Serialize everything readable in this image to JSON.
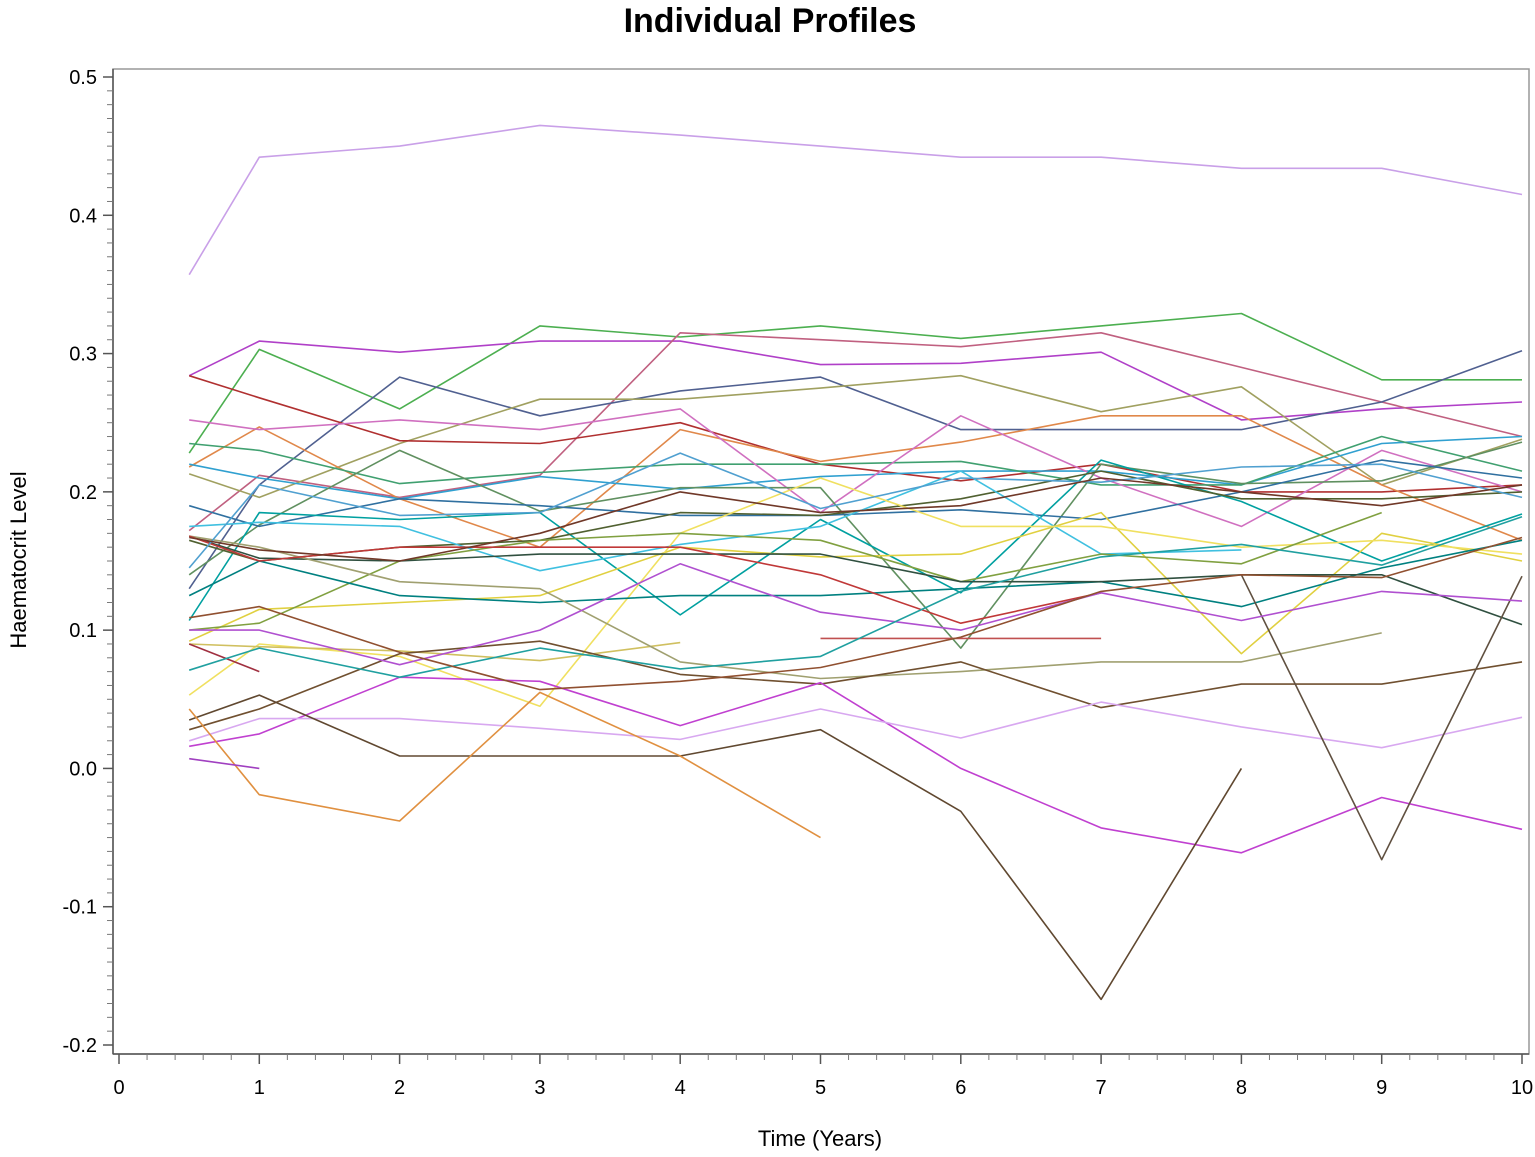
{
  "chart_data": {
    "type": "line",
    "title": "Individual Profiles",
    "xlabel": "Time (Years)",
    "ylabel": "Haematocrit Level",
    "xlim": [
      0,
      10
    ],
    "ylim": [
      -0.2,
      0.5
    ],
    "x_ticks": [
      "0",
      "1",
      "2",
      "3",
      "4",
      "5",
      "6",
      "7",
      "8",
      "9",
      "10"
    ],
    "y_ticks": [
      "0.5",
      "0.4",
      "0.3",
      "0.2",
      "0.1",
      "0.0",
      "-0.1",
      "-0.2"
    ],
    "x_tick_values": [
      0,
      1,
      2,
      3,
      4,
      5,
      6,
      7,
      8,
      9,
      10
    ],
    "y_tick_values": [
      0.5,
      0.4,
      0.3,
      0.2,
      0.1,
      0.0,
      -0.1,
      -0.2
    ],
    "grid": false,
    "legend": "none",
    "series": [
      {
        "color": "#c9a0e8",
        "x": [
          0.5,
          1,
          2,
          3,
          4,
          5,
          6,
          7,
          8,
          9,
          10
        ],
        "y": [
          0.357,
          0.442,
          0.45,
          0.465,
          0.458,
          0.45,
          0.442,
          0.442,
          0.434,
          0.434,
          0.415
        ]
      },
      {
        "color": "#4caf50",
        "x": [
          0.5,
          1,
          2,
          3,
          4,
          5,
          6,
          7,
          8,
          9,
          10
        ],
        "y": [
          0.228,
          0.303,
          0.26,
          0.32,
          0.312,
          0.32,
          0.311,
          0.32,
          0.329,
          0.281,
          0.281
        ]
      },
      {
        "color": "#b040c8",
        "x": [
          0.5,
          1,
          2,
          3,
          4,
          5,
          6,
          7,
          8,
          9,
          10
        ],
        "y": [
          0.284,
          0.309,
          0.301,
          0.309,
          0.309,
          0.292,
          0.293,
          0.301,
          0.252,
          0.26,
          0.265
        ]
      },
      {
        "color": "#c06080",
        "x": [
          0.5,
          1,
          2,
          3,
          4,
          5,
          6,
          7,
          8,
          9,
          10
        ],
        "y": [
          0.172,
          0.212,
          0.196,
          0.212,
          0.315,
          0.31,
          0.305,
          0.315,
          0.29,
          0.265,
          0.24
        ]
      },
      {
        "color": "#506090",
        "x": [
          0.5,
          1,
          2,
          3,
          4,
          5,
          6,
          7,
          8,
          9,
          10
        ],
        "y": [
          0.13,
          0.205,
          0.283,
          0.255,
          0.273,
          0.283,
          0.245,
          0.245,
          0.245,
          0.265,
          0.302
        ]
      },
      {
        "color": "#a0a060",
        "x": [
          0.5,
          1,
          2,
          3,
          4,
          5,
          6,
          7,
          8,
          9,
          10
        ],
        "y": [
          0.213,
          0.196,
          0.235,
          0.267,
          0.267,
          0.275,
          0.284,
          0.258,
          0.276,
          0.205,
          0.238
        ]
      },
      {
        "color": "#b03030",
        "x": [
          0.5,
          1,
          2,
          3,
          4,
          5,
          6,
          7,
          8,
          9,
          10
        ],
        "y": [
          0.284,
          0.268,
          0.237,
          0.235,
          0.25,
          0.22,
          0.208,
          0.22,
          0.2,
          0.2,
          0.205
        ]
      },
      {
        "color": "#e0884a",
        "x": [
          0.5,
          1,
          2,
          3,
          4,
          5,
          6,
          7,
          8,
          9,
          10
        ],
        "y": [
          0.218,
          0.247,
          0.195,
          0.16,
          0.245,
          0.222,
          0.236,
          0.255,
          0.255,
          0.205,
          0.165
        ]
      },
      {
        "color": "#30a0d0",
        "x": [
          0.5,
          1,
          2,
          3,
          4,
          5,
          6,
          7,
          8,
          9,
          10
        ],
        "y": [
          0.22,
          0.21,
          0.195,
          0.211,
          0.202,
          0.211,
          0.215,
          0.215,
          0.205,
          0.235,
          0.24
        ]
      },
      {
        "color": "#40a070",
        "x": [
          0.5,
          1,
          2,
          3,
          4,
          5,
          6,
          7,
          8,
          9,
          10
        ],
        "y": [
          0.235,
          0.23,
          0.206,
          0.214,
          0.22,
          0.22,
          0.222,
          0.205,
          0.205,
          0.24,
          0.215
        ]
      },
      {
        "color": "#d070c0",
        "x": [
          0.5,
          1,
          2,
          3,
          4,
          5,
          6,
          7,
          8,
          9,
          10
        ],
        "y": [
          0.252,
          0.245,
          0.252,
          0.245,
          0.26,
          0.185,
          0.255,
          0.21,
          0.175,
          0.23,
          0.2
        ]
      },
      {
        "color": "#609060",
        "x": [
          0.5,
          1,
          2,
          3,
          4,
          5,
          6,
          7,
          8,
          9,
          10
        ],
        "y": [
          0.14,
          0.176,
          0.23,
          0.186,
          0.203,
          0.203,
          0.087,
          0.22,
          0.206,
          0.208,
          0.236
        ]
      },
      {
        "color": "#3070a0",
        "x": [
          0.5,
          1,
          2,
          3,
          4,
          5,
          6,
          7,
          8,
          9,
          10
        ],
        "y": [
          0.19,
          0.175,
          0.195,
          0.19,
          0.183,
          0.183,
          0.187,
          0.18,
          0.2,
          0.223,
          0.21
        ]
      },
      {
        "color": "#00a0a0",
        "x": [
          0.5,
          1,
          2,
          3,
          4,
          5,
          6,
          7,
          8,
          9,
          10
        ],
        "y": [
          0.107,
          0.185,
          0.18,
          0.185,
          0.111,
          0.18,
          0.127,
          0.223,
          0.193,
          0.15,
          0.184
        ]
      },
      {
        "color": "#506030",
        "x": [
          0.5,
          1,
          2,
          3,
          4,
          5,
          6,
          7,
          8,
          9,
          10
        ],
        "y": [
          0.165,
          0.15,
          0.16,
          0.165,
          0.185,
          0.183,
          0.195,
          0.215,
          0.195,
          0.195,
          0.2
        ]
      },
      {
        "color": "#40c0e0",
        "x": [
          0.5,
          1,
          2,
          3,
          4,
          5,
          6,
          7,
          8
        ],
        "y": [
          0.175,
          0.178,
          0.175,
          0.143,
          0.162,
          0.175,
          0.215,
          0.155,
          0.158
        ]
      },
      {
        "color": "#e0d040",
        "x": [
          0.5,
          1,
          2,
          3,
          4,
          5,
          6,
          7,
          8,
          9,
          10
        ],
        "y": [
          0.092,
          0.115,
          0.12,
          0.125,
          0.16,
          0.153,
          0.155,
          0.185,
          0.083,
          0.17,
          0.15
        ]
      },
      {
        "color": "#f0e060",
        "x": [
          0.5,
          1,
          2,
          3,
          4,
          5,
          6,
          7,
          8,
          9,
          10
        ],
        "y": [
          0.053,
          0.09,
          0.081,
          0.045,
          0.17,
          0.21,
          0.175,
          0.175,
          0.16,
          0.165,
          0.155
        ]
      },
      {
        "color": "#80a040",
        "x": [
          0.5,
          1,
          2,
          3,
          4,
          5,
          6,
          7,
          8,
          9
        ],
        "y": [
          0.1,
          0.105,
          0.15,
          0.165,
          0.17,
          0.165,
          0.135,
          0.155,
          0.148,
          0.185
        ]
      },
      {
        "color": "#008080",
        "x": [
          0.5,
          1,
          2,
          3,
          4,
          5,
          6,
          7,
          8,
          9,
          10
        ],
        "y": [
          0.125,
          0.15,
          0.125,
          0.12,
          0.125,
          0.125,
          0.13,
          0.135,
          0.117,
          0.145,
          0.165
        ]
      },
      {
        "color": "#305040",
        "x": [
          0.5,
          1,
          2,
          3,
          4,
          5,
          6,
          7,
          8,
          9,
          10
        ],
        "y": [
          0.168,
          0.152,
          0.15,
          0.155,
          0.155,
          0.155,
          0.135,
          0.135,
          0.14,
          0.14,
          0.104
        ]
      },
      {
        "color": "#d0c060",
        "x": [
          0.5,
          1,
          2,
          3,
          4
        ],
        "y": [
          0.09,
          0.088,
          0.085,
          0.078,
          0.091
        ]
      },
      {
        "color": "#a0a070",
        "x": [
          0.5,
          1,
          2,
          3,
          4,
          5,
          6,
          7,
          8,
          9
        ],
        "y": [
          0.168,
          0.16,
          0.135,
          0.13,
          0.077,
          0.065,
          0.07,
          0.077,
          0.077,
          0.098
        ]
      },
      {
        "color": "#705030",
        "x": [
          0.5,
          1,
          2,
          3,
          4,
          5,
          6,
          7,
          8,
          9,
          10
        ],
        "y": [
          0.028,
          0.043,
          0.083,
          0.092,
          0.068,
          0.061,
          0.077,
          0.044,
          0.061,
          0.061,
          0.077
        ]
      },
      {
        "color": "#c040d0",
        "x": [
          0.5,
          1,
          2,
          3,
          4,
          5,
          6,
          7,
          8,
          9,
          10
        ],
        "y": [
          0.016,
          0.025,
          0.066,
          0.063,
          0.031,
          0.062,
          0.0,
          -0.043,
          -0.061,
          -0.021,
          -0.044
        ]
      },
      {
        "color": "#d8a8f0",
        "x": [
          0.5,
          1,
          2,
          3,
          4,
          5,
          6,
          7,
          8,
          9,
          10
        ],
        "y": [
          0.02,
          0.036,
          0.036,
          0.029,
          0.021,
          0.043,
          0.022,
          0.048,
          0.03,
          0.015,
          0.037
        ]
      },
      {
        "color": "#604830",
        "x": [
          0.5,
          1,
          2,
          3,
          4,
          5,
          6,
          7,
          8
        ],
        "y": [
          0.035,
          0.053,
          0.009,
          0.009,
          0.009,
          0.028,
          -0.031,
          -0.167,
          0.0
        ]
      },
      {
        "color": "#605040",
        "x": [
          8,
          9,
          10
        ],
        "y": [
          0.14,
          -0.066,
          0.139
        ]
      },
      {
        "color": "#e09040",
        "x": [
          0.5,
          1,
          2,
          3,
          4,
          5
        ],
        "y": [
          0.043,
          -0.019,
          -0.038,
          0.055,
          0.009,
          -0.05
        ]
      },
      {
        "color": "#a040c0",
        "x": [
          0.5,
          1
        ],
        "y": [
          0.007,
          0.0
        ]
      },
      {
        "color": "#a03040",
        "x": [
          0.5,
          1
        ],
        "y": [
          0.09,
          0.07
        ]
      },
      {
        "color": "#c05050",
        "x": [
          5,
          6,
          7
        ],
        "y": [
          0.094,
          0.094,
          0.094
        ]
      },
      {
        "color": "#c03838",
        "x": [
          0.5,
          1,
          2,
          3,
          4,
          5,
          6,
          7
        ],
        "y": [
          0.168,
          0.15,
          0.16,
          0.16,
          0.16,
          0.14,
          0.105,
          0.127
        ]
      },
      {
        "color": "#b050d0",
        "x": [
          0.5,
          1,
          2,
          3,
          4,
          5,
          6,
          7,
          8,
          9,
          10
        ],
        "y": [
          0.1,
          0.1,
          0.075,
          0.1,
          0.148,
          0.113,
          0.1,
          0.127,
          0.107,
          0.128,
          0.121
        ]
      },
      {
        "color": "#20a0a0",
        "x": [
          0.5,
          1,
          2,
          3,
          4,
          5,
          6,
          7,
          8,
          9,
          10
        ],
        "y": [
          0.071,
          0.087,
          0.066,
          0.087,
          0.072,
          0.081,
          0.128,
          0.153,
          0.162,
          0.147,
          0.182
        ]
      },
      {
        "color": "#905030",
        "x": [
          0.5,
          1,
          2,
          3,
          4,
          5,
          6,
          7,
          8,
          9,
          10
        ],
        "y": [
          0.109,
          0.117,
          0.084,
          0.057,
          0.063,
          0.073,
          0.095,
          0.128,
          0.14,
          0.138,
          0.167
        ]
      },
      {
        "color": "#50a0d0",
        "x": [
          0.5,
          1,
          2,
          3,
          4,
          5,
          6,
          7,
          8,
          9,
          10
        ],
        "y": [
          0.145,
          0.205,
          0.183,
          0.185,
          0.228,
          0.188,
          0.21,
          0.207,
          0.218,
          0.22,
          0.196
        ]
      },
      {
        "color": "#703828",
        "x": [
          0.5,
          1,
          2,
          3,
          4,
          5,
          6,
          7,
          8,
          9,
          10
        ],
        "y": [
          0.167,
          0.158,
          0.15,
          0.17,
          0.2,
          0.185,
          0.19,
          0.21,
          0.2,
          0.19,
          0.205
        ]
      }
    ]
  }
}
